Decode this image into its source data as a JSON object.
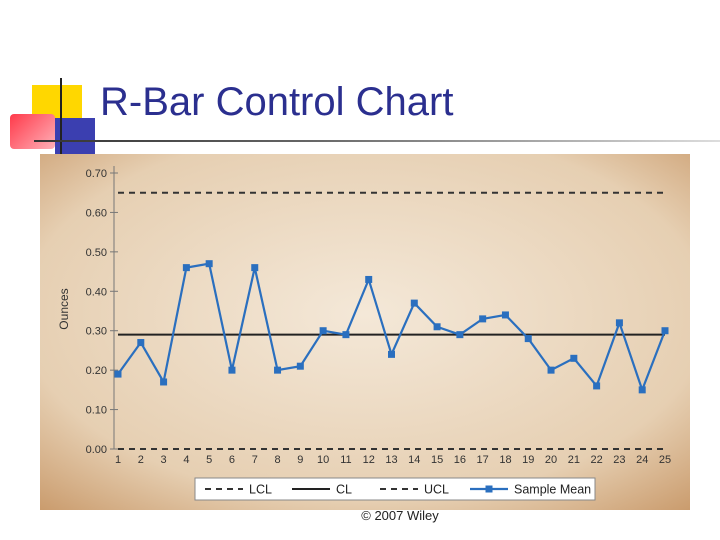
{
  "slide": {
    "title": "R-Bar Control Chart",
    "footer": "© 2007 Wiley"
  },
  "colors": {
    "title": "#2b2f8f",
    "series": "#2a6fbf",
    "panel_dark": "#c99a6b",
    "panel_light": "#f4e8d8"
  },
  "chart_data": {
    "type": "line",
    "title": "",
    "xlabel": "",
    "ylabel": "Ounces",
    "ylim": [
      0,
      0.7
    ],
    "y_ticks": [
      "0.00",
      "0.10",
      "0.20",
      "0.30",
      "0.40",
      "0.50",
      "0.60",
      "0.70"
    ],
    "x": [
      1,
      2,
      3,
      4,
      5,
      6,
      7,
      8,
      9,
      10,
      11,
      12,
      13,
      14,
      15,
      16,
      17,
      18,
      19,
      20,
      21,
      22,
      23,
      24,
      25
    ],
    "series": [
      {
        "name": "LCL",
        "style": "dashed",
        "values": [
          0,
          0,
          0,
          0,
          0,
          0,
          0,
          0,
          0,
          0,
          0,
          0,
          0,
          0,
          0,
          0,
          0,
          0,
          0,
          0,
          0,
          0,
          0,
          0,
          0
        ]
      },
      {
        "name": "CL",
        "style": "solid",
        "values": [
          0.29,
          0.29,
          0.29,
          0.29,
          0.29,
          0.29,
          0.29,
          0.29,
          0.29,
          0.29,
          0.29,
          0.29,
          0.29,
          0.29,
          0.29,
          0.29,
          0.29,
          0.29,
          0.29,
          0.29,
          0.29,
          0.29,
          0.29,
          0.29,
          0.29
        ]
      },
      {
        "name": "UCL",
        "style": "dashed",
        "values": [
          0.65,
          0.65,
          0.65,
          0.65,
          0.65,
          0.65,
          0.65,
          0.65,
          0.65,
          0.65,
          0.65,
          0.65,
          0.65,
          0.65,
          0.65,
          0.65,
          0.65,
          0.65,
          0.65,
          0.65,
          0.65,
          0.65,
          0.65,
          0.65,
          0.65
        ]
      },
      {
        "name": "Sample Mean",
        "style": "line-marker",
        "values": [
          0.19,
          0.27,
          0.17,
          0.46,
          0.47,
          0.2,
          0.46,
          0.2,
          0.21,
          0.3,
          0.29,
          0.43,
          0.24,
          0.37,
          0.31,
          0.29,
          0.33,
          0.34,
          0.28,
          0.2,
          0.23,
          0.16,
          0.32,
          0.15,
          0.3
        ]
      }
    ],
    "grid": false,
    "legend_position": "bottom"
  }
}
